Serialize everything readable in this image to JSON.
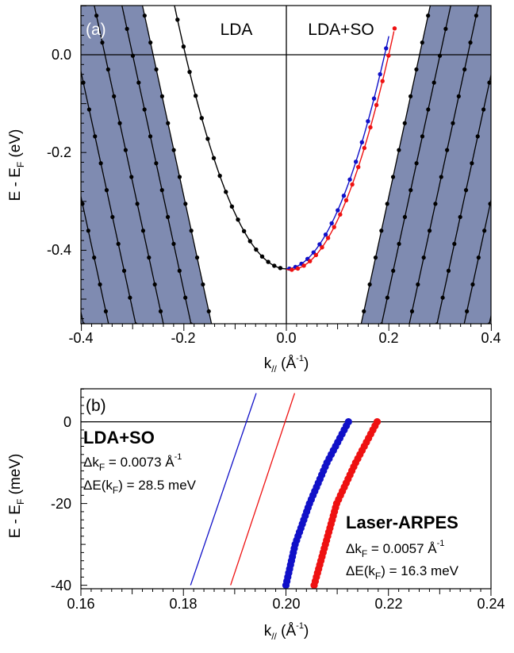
{
  "colors": {
    "bulk_shade": "#7f8bb1",
    "lda": "#000000",
    "spin_up": "#1010c8",
    "spin_down": "#ee1111"
  },
  "chart_data": [
    {
      "panel": "(a)",
      "type": "line",
      "title_labels": [
        "LDA",
        "LDA+SO"
      ],
      "xlabel": {
        "main": "k",
        "sub": "//",
        "unit": " (Å",
        "sup": "-1",
        "close": ")"
      },
      "ylabel": {
        "main": "E - E",
        "sub": "F",
        "unit": " (eV)"
      },
      "xlim": [
        -0.4,
        0.4
      ],
      "ylim": [
        -0.55,
        0.1
      ],
      "xticks": [
        "-0.4",
        "-0.2",
        "0.0",
        "0.2",
        "0.4"
      ],
      "xtick_values": [
        -0.4,
        -0.2,
        0.0,
        0.2,
        0.4
      ],
      "yticks": [
        "0.0",
        "-0.2",
        "-0.4"
      ],
      "ytick_values": [
        0.0,
        -0.2,
        -0.4
      ],
      "surface_bands": [
        {
          "name": "LDA",
          "k_range": [
            -0.22,
            0.0
          ],
          "E0": -0.438,
          "coef": 11.3,
          "k0": 0.0
        },
        {
          "name": "LDA+SO spin 1",
          "k_range": [
            0.0,
            0.2
          ],
          "E0": -0.438,
          "coef": 11.9,
          "k0": 0.0
        },
        {
          "name": "LDA+SO spin 2",
          "k_range": [
            0.0,
            0.21
          ],
          "E0": -0.44,
          "coef": 11.9,
          "k0": 0.0075
        }
      ],
      "bulk_band_lines": {
        "slope_dk_dE": 0.207,
        "intercepts_k_at_E0": [
          0.26,
          0.3,
          0.354,
          0.408,
          0.461,
          0.51
        ]
      },
      "bulk_gap_edge_k_at_E0": 0.26
    },
    {
      "panel": "(b)",
      "type": "line",
      "xlabel": {
        "main": "k",
        "sub": "//",
        "unit": " (Å",
        "sup": "-1",
        "close": ")"
      },
      "ylabel": {
        "main": "E - E",
        "sub": "F",
        "unit": " (meV)"
      },
      "xlim": [
        0.16,
        0.24
      ],
      "ylim": [
        -41,
        8
      ],
      "xticks": [
        "0.16",
        "0.18",
        "0.20",
        "0.22",
        "0.24"
      ],
      "xtick_values": [
        0.16,
        0.18,
        0.2,
        0.22,
        0.24
      ],
      "yticks": [
        "0",
        "-20",
        "-40"
      ],
      "ytick_values": [
        0,
        -20,
        -40
      ],
      "series": [
        {
          "name": "LDA+SO spin 1",
          "style": "line",
          "points": [
            [
              0.1814,
              -40
            ],
            [
              0.1942,
              7
            ]
          ]
        },
        {
          "name": "LDA+SO spin 2",
          "style": "line",
          "points": [
            [
              0.1892,
              -40
            ],
            [
              0.2017,
              7
            ]
          ]
        },
        {
          "name": "Laser-ARPES spin 1",
          "style": "dots",
          "E": [
            -40,
            -30,
            -20,
            -10,
            0
          ],
          "k": [
            0.2,
            0.2018,
            0.2046,
            0.208,
            0.2122
          ]
        },
        {
          "name": "Laser-ARPES spin 2",
          "style": "dots",
          "E": [
            -40,
            -30,
            -20,
            -10,
            0
          ],
          "k": [
            0.2055,
            0.2077,
            0.2099,
            0.2136,
            0.2178
          ]
        }
      ],
      "annotations": {
        "lda_so": {
          "title": "LDA+SO",
          "dk_label": "Δk",
          "dk_sub": "F",
          "dk_value": " = 0.0073 Å",
          "dk_sup": "-1",
          "de_label": "ΔE(k",
          "de_sub": "F",
          "de_value": ") = 28.5 meV"
        },
        "arpes": {
          "title": "Laser-ARPES",
          "dk_label": "Δk",
          "dk_sub": "F",
          "dk_value": " = 0.0057 Å",
          "dk_sup": "-1",
          "de_label": "ΔE(k",
          "de_sub": "F",
          "de_value": ") = 16.3 meV"
        }
      }
    }
  ]
}
